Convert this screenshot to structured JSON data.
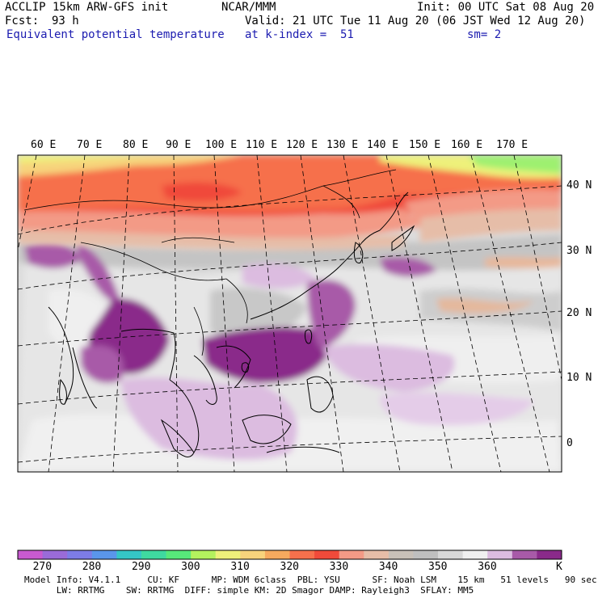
{
  "header": {
    "model": "ACCLIP 15km ARW-GFS init",
    "center": "NCAR/MMM",
    "init": "Init: 00 UTC Sat 08 Aug 20",
    "fcst_label": "Fcst:",
    "fcst_value": "93 h",
    "valid": "Valid: 21 UTC Tue 11 Aug 20 (06 JST Wed 12 Aug 20)",
    "field": "Equivalent potential temperature",
    "level": "at k-index =  51",
    "smoothing": "sm= 2"
  },
  "map": {
    "lon_labels": [
      "60 E",
      "70 E",
      "80 E",
      "90 E",
      "100 E",
      "110 E",
      "120 E",
      "130 E",
      "140 E",
      "150 E",
      "160 E",
      "170 E"
    ],
    "lat_labels": [
      "40 N",
      "30 N",
      "20 N",
      "10 N",
      "0"
    ]
  },
  "colorbar": {
    "unit": "K",
    "tick_labels": [
      "270",
      "280",
      "290",
      "300",
      "310",
      "320",
      "330",
      "340",
      "350",
      "360"
    ],
    "colors": [
      "#c85ad0",
      "#9a6bd8",
      "#7d7ce6",
      "#5a96ea",
      "#35c6c6",
      "#3fd9a0",
      "#57e87a",
      "#b4f25e",
      "#eef17a",
      "#f7d37c",
      "#f6aa5e",
      "#f6704c",
      "#f04a3a",
      "#f39a86",
      "#e6bda8",
      "#c8c0b8",
      "#bfbfbf",
      "#d8d8d8",
      "#f0f0f0",
      "#dcbce0",
      "#a85aa8",
      "#8a2a8a"
    ],
    "value_range": [
      265,
      375
    ],
    "interval": 5
  },
  "footer": {
    "line1": "Model Info: V4.1.1     CU: KF      MP: WDM 6class  PBL: YSU      SF: Noah LSM    15 km   51 levels   90 sec",
    "line2": "      LW: RRTMG    SW: RRTMG  DIFF: simple KM: 2D Smagor DAMP: Rayleigh3  SFLAY: MM5"
  }
}
